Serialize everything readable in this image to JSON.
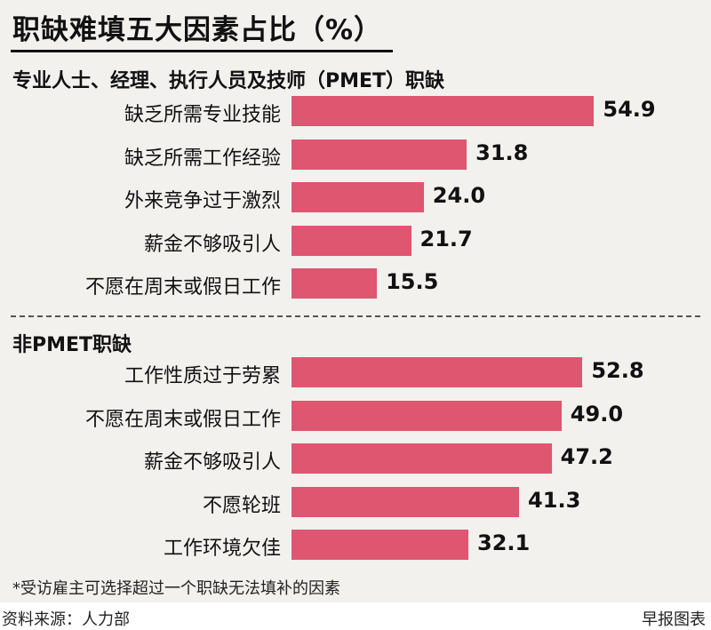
{
  "title": "职缺难填五大因素占比（%）",
  "footnote": "*受访雇主可选择超过一个职缺无法填补的因素",
  "source": "资料来源：人力部",
  "credit": "早报图表",
  "colors": {
    "bar": "#de5670",
    "background": "#f2f1ee"
  },
  "chart_data": [
    {
      "type": "bar",
      "orientation": "horizontal",
      "title": "专业人士、经理、执行人员及技师（PMET）职缺",
      "categories": [
        "缺乏所需专业技能",
        "缺乏所需工作经验",
        "外来竞争过于激烈",
        "薪金不够吸引人",
        "不愿在周末或假日工作"
      ],
      "values": [
        54.9,
        31.8,
        24.0,
        21.7,
        15.5
      ],
      "value_labels": [
        "54.9",
        "31.8",
        "24.0",
        "21.7",
        "15.5"
      ],
      "grid": false
    },
    {
      "type": "bar",
      "orientation": "horizontal",
      "title": "非PMET职缺",
      "categories": [
        "工作性质过于劳累",
        "不愿在周末或假日工作",
        "薪金不够吸引人",
        "不愿轮班",
        "工作环境欠佳"
      ],
      "values": [
        52.8,
        49.0,
        47.2,
        41.3,
        32.1
      ],
      "value_labels": [
        "52.8",
        "49.0",
        "47.2",
        "41.3",
        "32.1"
      ],
      "grid": false
    }
  ]
}
